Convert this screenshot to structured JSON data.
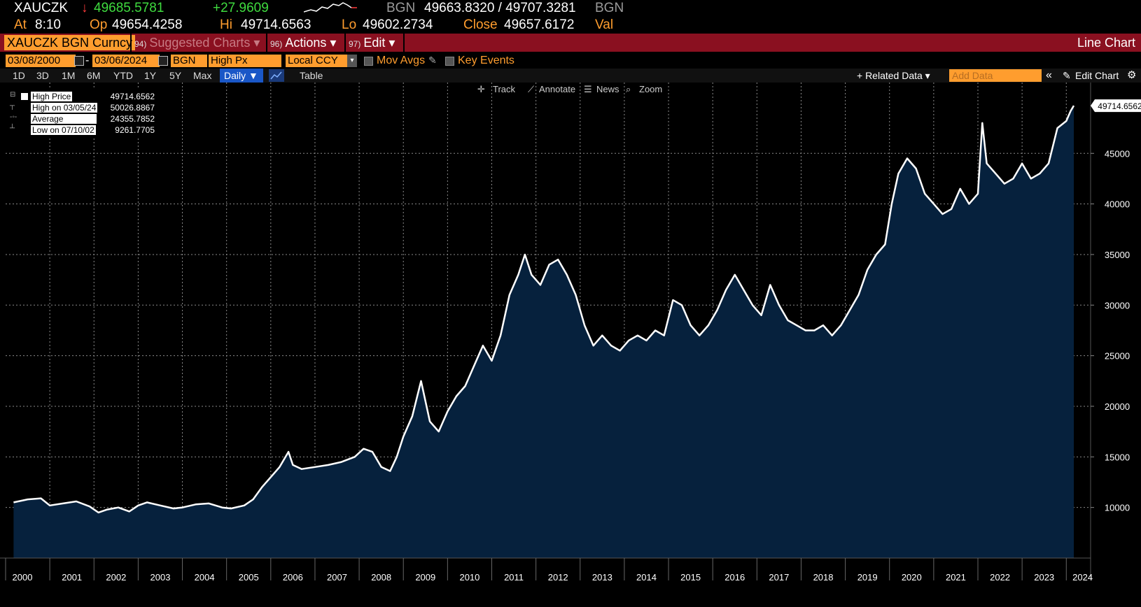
{
  "header": {
    "ticker": "XAUCZK",
    "arrow": "↓",
    "last": "49685.5781",
    "change": "+27.9609",
    "source": "BGN",
    "bid_ask": "49663.8320 / 49707.3281",
    "source2": "BGN",
    "at_label": "At",
    "time": "8:10",
    "op_label": "Op",
    "open": "49654.4258",
    "hi_label": "Hi",
    "high": "49714.6563",
    "lo_label": "Lo",
    "low": "49602.2734",
    "close_label": "Close",
    "close": "49657.6172",
    "val_label": "Val"
  },
  "menubar": {
    "security": "XAUCZK BGN Curncy",
    "suggested_num": "94)",
    "suggested": "Suggested Charts ▾",
    "actions_num": "96)",
    "actions": "Actions ▾",
    "edit_num": "97)",
    "edit": "Edit ▾",
    "chart_type": "Line Chart"
  },
  "controls": {
    "start_date": "03/08/2000",
    "dash": "-",
    "end_date": "03/06/2024",
    "source": "BGN",
    "field": "High Px",
    "currency": "Local CCY",
    "mov_avgs": "Mov Avgs",
    "key_events": "Key Events"
  },
  "timeframes": [
    "1D",
    "3D",
    "1M",
    "6M",
    "YTD",
    "1Y",
    "5Y",
    "Max"
  ],
  "period": "Daily ▼",
  "table_label": "Table",
  "related_data": "+ Related Data ▾",
  "add_data_placeholder": "Add Data",
  "collapse": "«",
  "edit_chart": "Edit Chart",
  "tools": {
    "track": "Track",
    "annotate": "Annotate",
    "news": "News",
    "zoom": "Zoom"
  },
  "legend": [
    {
      "label": "High Price",
      "value": "49714.6562"
    },
    {
      "label": "High on 03/05/24",
      "value": "50026.8867"
    },
    {
      "label": "Average",
      "value": "24355.7852"
    },
    {
      "label": "Low on 07/10/02",
      "value": "9261.7705"
    }
  ],
  "colors": {
    "fill": "#06213d",
    "line": "#ffffff",
    "accent": "#ff9d2e",
    "bar": "#8a1020"
  },
  "chart_data": {
    "type": "area",
    "series_name": "High Price",
    "last_value_label": "49714.6562",
    "ylim": [
      5000,
      52000
    ],
    "yticks": [
      10000,
      15000,
      20000,
      25000,
      30000,
      35000,
      40000,
      45000
    ],
    "ytick_labels": [
      "10000",
      "15000",
      "20000",
      "25000",
      "30000",
      "35000",
      "40000",
      "45000"
    ],
    "xlim": [
      2000.0,
      2024.55
    ],
    "xtick_labels": [
      "2000",
      "2001",
      "2002",
      "2003",
      "2004",
      "2005",
      "2006",
      "2007",
      "2008",
      "2009",
      "2010",
      "2011",
      "2012",
      "2013",
      "2014",
      "2015",
      "2016",
      "2017",
      "2018",
      "2019",
      "2020",
      "2021",
      "2022",
      "2023",
      "2024"
    ],
    "x": [
      2000.18,
      2000.5,
      2000.8,
      2001.0,
      2001.3,
      2001.6,
      2001.9,
      2002.1,
      2002.3,
      2002.55,
      2002.8,
      2003.0,
      2003.2,
      2003.5,
      2003.8,
      2004.0,
      2004.3,
      2004.6,
      2004.9,
      2005.1,
      2005.4,
      2005.6,
      2005.8,
      2006.0,
      2006.2,
      2006.4,
      2006.5,
      2006.7,
      2007.0,
      2007.3,
      2007.6,
      2007.9,
      2008.1,
      2008.3,
      2008.5,
      2008.7,
      2008.85,
      2009.0,
      2009.2,
      2009.4,
      2009.6,
      2009.8,
      2010.0,
      2010.2,
      2010.4,
      2010.6,
      2010.8,
      2011.0,
      2011.2,
      2011.4,
      2011.6,
      2011.75,
      2011.9,
      2012.1,
      2012.3,
      2012.5,
      2012.7,
      2012.9,
      2013.1,
      2013.3,
      2013.5,
      2013.7,
      2013.9,
      2014.1,
      2014.3,
      2014.5,
      2014.7,
      2014.9,
      2015.1,
      2015.3,
      2015.5,
      2015.7,
      2015.9,
      2016.1,
      2016.3,
      2016.5,
      2016.7,
      2016.9,
      2017.1,
      2017.3,
      2017.5,
      2017.7,
      2017.9,
      2018.1,
      2018.3,
      2018.5,
      2018.7,
      2018.9,
      2019.1,
      2019.3,
      2019.5,
      2019.7,
      2019.9,
      2020.05,
      2020.2,
      2020.4,
      2020.6,
      2020.8,
      2021.0,
      2021.2,
      2021.4,
      2021.6,
      2021.8,
      2022.0,
      2022.1,
      2022.2,
      2022.4,
      2022.6,
      2022.8,
      2023.0,
      2023.2,
      2023.4,
      2023.6,
      2023.8,
      2024.0,
      2024.1,
      2024.17
    ],
    "y": [
      10500,
      10800,
      10900,
      10200,
      10400,
      10600,
      10100,
      9500,
      9800,
      10000,
      9600,
      10200,
      10500,
      10200,
      9900,
      10000,
      10300,
      10400,
      10000,
      9900,
      10200,
      10800,
      12000,
      13000,
      14000,
      15500,
      14200,
      13800,
      14000,
      14200,
      14500,
      15000,
      15800,
      15500,
      14000,
      13600,
      15000,
      17000,
      19000,
      22500,
      18500,
      17500,
      19500,
      21000,
      22000,
      24000,
      26000,
      24500,
      27000,
      31000,
      33000,
      35000,
      33000,
      32000,
      34000,
      34500,
      33000,
      31000,
      28000,
      26000,
      27000,
      26000,
      25500,
      26500,
      27000,
      26500,
      27500,
      27000,
      30500,
      30000,
      28000,
      27000,
      28000,
      29500,
      31500,
      33000,
      31500,
      30000,
      29000,
      32000,
      30000,
      28500,
      28000,
      27500,
      27500,
      28000,
      27000,
      28000,
      29500,
      31000,
      33500,
      35000,
      36000,
      40000,
      43000,
      44500,
      43500,
      41000,
      40000,
      39000,
      39500,
      41500,
      40000,
      41000,
      48000,
      44000,
      43000,
      42000,
      42500,
      44000,
      42500,
      43000,
      44000,
      47500,
      48200,
      49200,
      49714
    ]
  }
}
